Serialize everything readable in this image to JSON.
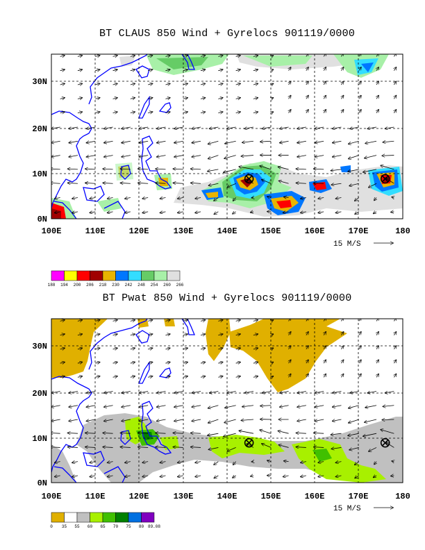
{
  "panels": [
    {
      "title": "BT CLAUS 850 Wind + Gyrelocs 901119/0000",
      "lat_labels": [
        "30N",
        "20N",
        "10N",
        "0N"
      ],
      "lon_labels": [
        "100E",
        "110E",
        "120E",
        "130E",
        "140E",
        "150E",
        "160E",
        "170E",
        "180"
      ],
      "scale_label": "15 M/S",
      "colorbar": {
        "colors": [
          "#ff00ff",
          "#ffff00",
          "#ff0000",
          "#a00000",
          "#e8b400",
          "#0077ff",
          "#33ddff",
          "#66cc66",
          "#a8f0a8",
          "#e0e0e0"
        ],
        "labels": [
          "188",
          "194",
          "200",
          "206",
          "218",
          "230",
          "242",
          "248",
          "254",
          "260",
          "266"
        ]
      },
      "gyres": [
        {
          "lon": 145,
          "lat": 8.5
        },
        {
          "lon": 176,
          "lat": 8.5
        }
      ]
    },
    {
      "title": "BT Pwat 850 Wind + Gyrelocs 901119/0000",
      "lat_labels": [
        "30N",
        "20N",
        "10N",
        "0N"
      ],
      "lon_labels": [
        "100E",
        "110E",
        "120E",
        "130E",
        "140E",
        "150E",
        "160E",
        "170E",
        "180"
      ],
      "scale_label": "15 M/S",
      "colorbar": {
        "colors": [
          "#e0b000",
          "#ffffff",
          "#c0c0c0",
          "#a8f000",
          "#40c000",
          "#008000",
          "#0070e0",
          "#8000c0"
        ],
        "labels": [
          "0",
          "35",
          "55",
          "60",
          "65",
          "70",
          "75",
          "80",
          "89.08"
        ]
      },
      "gyres": [
        {
          "lon": 145,
          "lat": 8.5
        },
        {
          "lon": 176,
          "lat": 8.5
        }
      ]
    }
  ]
}
